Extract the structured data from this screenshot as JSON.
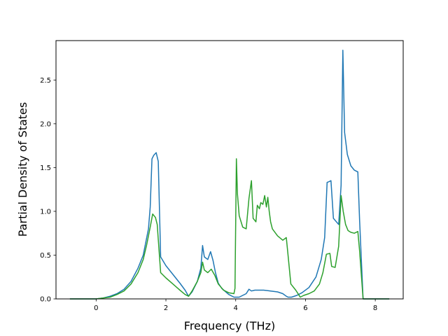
{
  "chart_data": {
    "type": "line",
    "title": "",
    "xlabel": "Frequency (THz)",
    "ylabel": "Partial Density of States",
    "xlim": [
      -1.15,
      8.8
    ],
    "ylim": [
      0.0,
      2.95
    ],
    "xticks": [
      0,
      2,
      4,
      6,
      8
    ],
    "xtick_labels": [
      "0",
      "2",
      "4",
      "6",
      "8"
    ],
    "yticks": [
      0.0,
      0.5,
      1.0,
      1.5,
      2.0,
      2.5
    ],
    "ytick_labels": [
      "0.0",
      "0.5",
      "1.0",
      "1.5",
      "2.0",
      "2.5"
    ],
    "grid": false,
    "legend": false,
    "series": [
      {
        "color": "#1f77b4",
        "x": [
          -0.75,
          -0.4,
          0.0,
          0.2,
          0.4,
          0.6,
          0.8,
          1.0,
          1.2,
          1.35,
          1.5,
          1.55,
          1.6,
          1.65,
          1.72,
          1.78,
          1.85,
          2.0,
          2.2,
          2.4,
          2.55,
          2.65,
          2.75,
          2.9,
          3.0,
          3.05,
          3.1,
          3.2,
          3.28,
          3.35,
          3.42,
          3.5,
          3.6,
          3.8,
          3.95,
          4.1,
          4.3,
          4.38,
          4.45,
          4.55,
          4.65,
          4.8,
          5.0,
          5.2,
          5.35,
          5.45,
          5.5,
          5.6,
          5.75,
          5.9,
          6.1,
          6.3,
          6.45,
          6.55,
          6.62,
          6.68,
          6.73,
          6.8,
          6.95,
          7.02,
          7.07,
          7.12,
          7.2,
          7.3,
          7.4,
          7.5,
          7.55,
          7.65,
          7.8,
          8.0,
          8.4
        ],
        "y": [
          0.0,
          0.0,
          0.0,
          0.01,
          0.03,
          0.06,
          0.11,
          0.2,
          0.35,
          0.5,
          0.8,
          1.05,
          1.6,
          1.64,
          1.67,
          1.57,
          0.48,
          0.38,
          0.28,
          0.18,
          0.1,
          0.03,
          0.08,
          0.2,
          0.35,
          0.61,
          0.48,
          0.45,
          0.54,
          0.44,
          0.3,
          0.18,
          0.12,
          0.05,
          0.02,
          0.02,
          0.06,
          0.11,
          0.09,
          0.1,
          0.1,
          0.1,
          0.09,
          0.08,
          0.06,
          0.03,
          0.02,
          0.02,
          0.04,
          0.07,
          0.13,
          0.25,
          0.45,
          0.7,
          1.33,
          1.34,
          1.35,
          0.92,
          0.85,
          1.3,
          2.84,
          1.9,
          1.65,
          1.52,
          1.47,
          1.45,
          0.9,
          0.0,
          0.0,
          0.0,
          0.0
        ]
      },
      {
        "color": "#2ca02c",
        "x": [
          -0.75,
          -0.4,
          0.0,
          0.2,
          0.4,
          0.6,
          0.8,
          1.0,
          1.2,
          1.35,
          1.45,
          1.55,
          1.62,
          1.7,
          1.75,
          1.85,
          2.0,
          2.2,
          2.4,
          2.55,
          2.65,
          2.75,
          2.9,
          3.0,
          3.05,
          3.1,
          3.2,
          3.3,
          3.4,
          3.5,
          3.65,
          3.8,
          3.95,
          3.98,
          4.02,
          4.05,
          4.1,
          4.2,
          4.3,
          4.38,
          4.45,
          4.5,
          4.58,
          4.62,
          4.68,
          4.72,
          4.78,
          4.83,
          4.88,
          4.92,
          4.96,
          5.0,
          5.05,
          5.2,
          5.35,
          5.45,
          5.5,
          5.58,
          5.72,
          5.8,
          5.85,
          5.95,
          6.1,
          6.25,
          6.4,
          6.5,
          6.6,
          6.7,
          6.75,
          6.85,
          6.95,
          7.02,
          7.08,
          7.15,
          7.22,
          7.3,
          7.4,
          7.5,
          7.55,
          7.65,
          7.8,
          8.0,
          8.4
        ],
        "y": [
          0.0,
          0.0,
          0.0,
          0.01,
          0.02,
          0.05,
          0.09,
          0.17,
          0.3,
          0.45,
          0.62,
          0.82,
          0.97,
          0.93,
          0.85,
          0.3,
          0.24,
          0.17,
          0.1,
          0.05,
          0.03,
          0.09,
          0.2,
          0.3,
          0.42,
          0.33,
          0.3,
          0.34,
          0.27,
          0.17,
          0.1,
          0.07,
          0.06,
          0.12,
          1.6,
          1.2,
          0.95,
          0.82,
          0.8,
          1.15,
          1.35,
          0.92,
          0.88,
          1.07,
          1.03,
          1.1,
          1.08,
          1.18,
          1.05,
          1.16,
          1.0,
          0.88,
          0.8,
          0.72,
          0.67,
          0.7,
          0.5,
          0.17,
          0.1,
          0.05,
          0.02,
          0.04,
          0.06,
          0.09,
          0.17,
          0.3,
          0.51,
          0.52,
          0.37,
          0.36,
          0.6,
          1.18,
          1.0,
          0.85,
          0.78,
          0.76,
          0.75,
          0.77,
          0.55,
          0.0,
          0.0,
          0.0,
          0.0
        ]
      }
    ]
  }
}
